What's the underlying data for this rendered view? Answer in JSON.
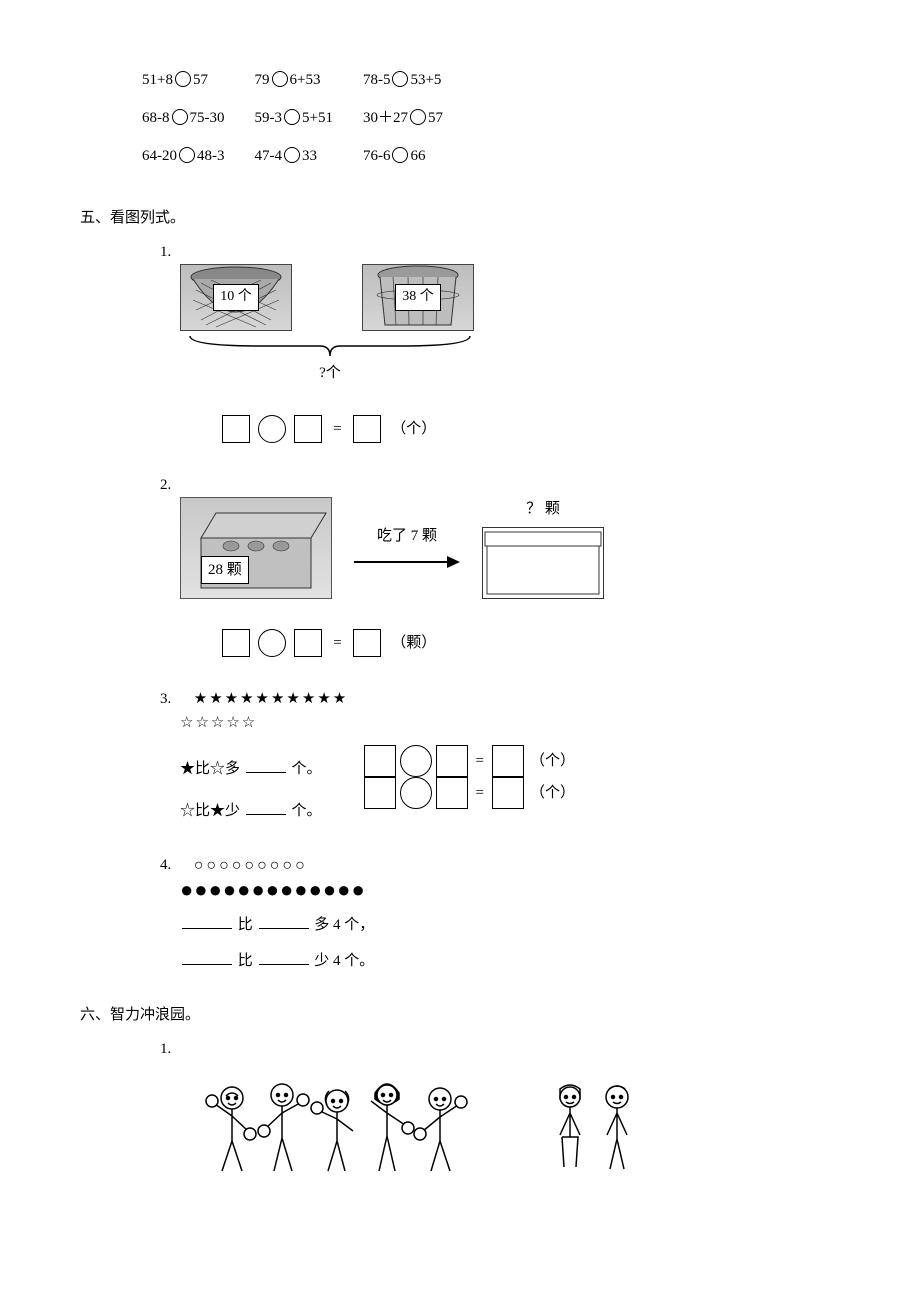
{
  "compare_rows": [
    [
      "51+8",
      "57",
      "79",
      "6+53",
      "78-5",
      "53+5"
    ],
    [
      "68-8",
      "75-30",
      "59-3",
      "5+51",
      "30＋27",
      "57"
    ],
    [
      "64-20",
      "48-3",
      "47-4",
      "33",
      "76-6",
      "66"
    ]
  ],
  "section5_title": "五、看图列式。",
  "q1": {
    "num": "1.",
    "basket1": "10 个",
    "basket2": "38 个",
    "question": "?个",
    "unit": "（个）"
  },
  "q2": {
    "num": "2.",
    "box_label": "28 颗",
    "arrow_label": "吃了 7 颗",
    "qmark": "？ 颗",
    "unit": "（颗）"
  },
  "q3": {
    "num": "3.",
    "solid_stars": "★★★★★★★★★★",
    "hollow_stars": "☆☆☆☆☆",
    "line1_a": "★比☆多 ",
    "line1_b": "个。",
    "line2_a": "☆比★少 ",
    "line2_b": "个。",
    "unit": "（个）"
  },
  "q4": {
    "num": "4.",
    "hollow": "○○○○○○○○○",
    "solid": "●●●●●●●●●●●●●",
    "line1_mid": "比 ",
    "line1_end": "多 4 个，",
    "line2_mid": "比 ",
    "line2_end": "少 4 个。"
  },
  "section6_title": "六、智力冲浪园。",
  "q6_1_num": "1."
}
